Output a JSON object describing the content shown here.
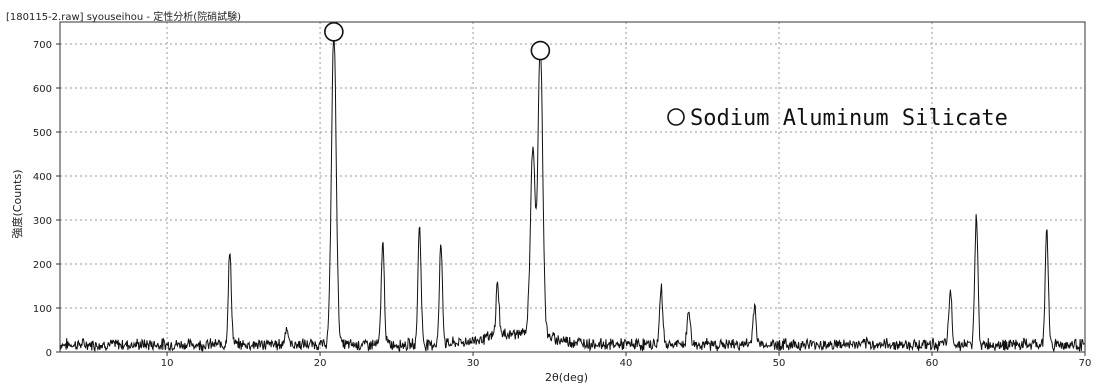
{
  "header": "[180115-2.raw] syouseihou - 定性分析(院硝試験)",
  "chart_data": {
    "type": "line",
    "xlabel": "2θ(deg)",
    "ylabel": "強度(Counts)",
    "xlim": [
      3,
      70
    ],
    "ylim": [
      0,
      750
    ],
    "x_ticks": [
      10,
      20,
      30,
      40,
      50,
      60,
      70
    ],
    "y_ticks": [
      0,
      100,
      200,
      300,
      400,
      500,
      600,
      700
    ],
    "grid": true,
    "legend_text": "Sodium Aluminum Silicate",
    "markers": [
      {
        "x": 20.9,
        "y": 705
      },
      {
        "x": 34.4,
        "y": 667
      }
    ],
    "peaks": [
      {
        "x": 14.1,
        "y": 210
      },
      {
        "x": 17.8,
        "y": 40
      },
      {
        "x": 20.9,
        "y": 705
      },
      {
        "x": 24.1,
        "y": 235
      },
      {
        "x": 26.5,
        "y": 275
      },
      {
        "x": 27.9,
        "y": 225
      },
      {
        "x": 31.6,
        "y": 120
      },
      {
        "x": 33.9,
        "y": 420
      },
      {
        "x": 34.4,
        "y": 660
      },
      {
        "x": 42.3,
        "y": 130
      },
      {
        "x": 44.1,
        "y": 80
      },
      {
        "x": 48.4,
        "y": 90
      },
      {
        "x": 61.2,
        "y": 120
      },
      {
        "x": 62.9,
        "y": 295
      },
      {
        "x": 67.5,
        "y": 260
      }
    ],
    "background": 12
  },
  "colors": {
    "line": "#111111",
    "grid": "#9a9a9a",
    "axis": "#333333"
  }
}
